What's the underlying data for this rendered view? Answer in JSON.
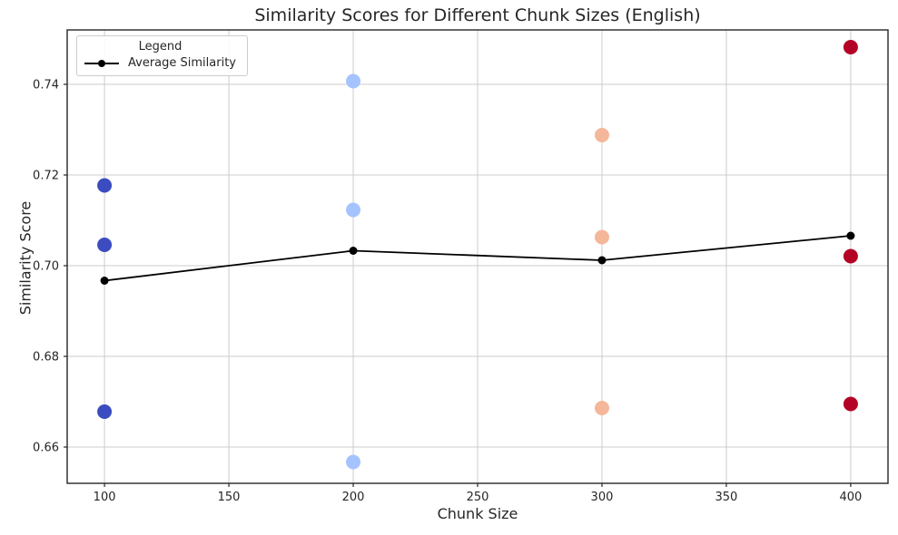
{
  "title": "Similarity Scores for Different Chunk Sizes (English)",
  "axes": {
    "xlabel": "Chunk Size",
    "ylabel": "Similarity Score"
  },
  "legend": {
    "title": "Legend",
    "entries": [
      {
        "label": "Average Similarity",
        "marker": "line-dot",
        "color": "#000000"
      }
    ]
  },
  "chart_data": {
    "type": "scatter",
    "title": "Similarity Scores for Different Chunk Sizes (English)",
    "xlabel": "Chunk Size",
    "ylabel": "Similarity Score",
    "xlim": [
      85,
      415
    ],
    "ylim": [
      0.652,
      0.752
    ],
    "x_ticks": [
      100,
      150,
      200,
      250,
      300,
      350,
      400
    ],
    "x_tick_labels": [
      "100",
      "150",
      "200",
      "250",
      "300",
      "350",
      "400"
    ],
    "y_ticks": [
      0.66,
      0.68,
      0.7,
      0.72,
      0.74
    ],
    "y_tick_labels": [
      "0.66",
      "0.68",
      "0.70",
      "0.72",
      "0.74"
    ],
    "grid": true,
    "grid_color": "#cccccc",
    "spine_color": "#262626",
    "colormap": "coolwarm",
    "legend_position": "upper-left",
    "scatter_series": [
      {
        "chunk_size": 100,
        "color": "#3b4cc0",
        "scores": [
          0.7177,
          0.7046,
          0.6678
        ]
      },
      {
        "chunk_size": 200,
        "color": "#a5c3fe",
        "scores": [
          0.7407,
          0.7123,
          0.6567
        ]
      },
      {
        "chunk_size": 300,
        "color": "#f4b79a",
        "scores": [
          0.7288,
          0.7063,
          0.6686
        ]
      },
      {
        "chunk_size": 400,
        "color": "#b40426",
        "scores": [
          0.7482,
          0.7021,
          0.6695
        ]
      }
    ],
    "average_line": {
      "name": "Average Similarity",
      "color": "#000000",
      "x": [
        100,
        200,
        300,
        400
      ],
      "y": [
        0.6967,
        0.7033,
        0.7012,
        0.7066
      ]
    }
  }
}
